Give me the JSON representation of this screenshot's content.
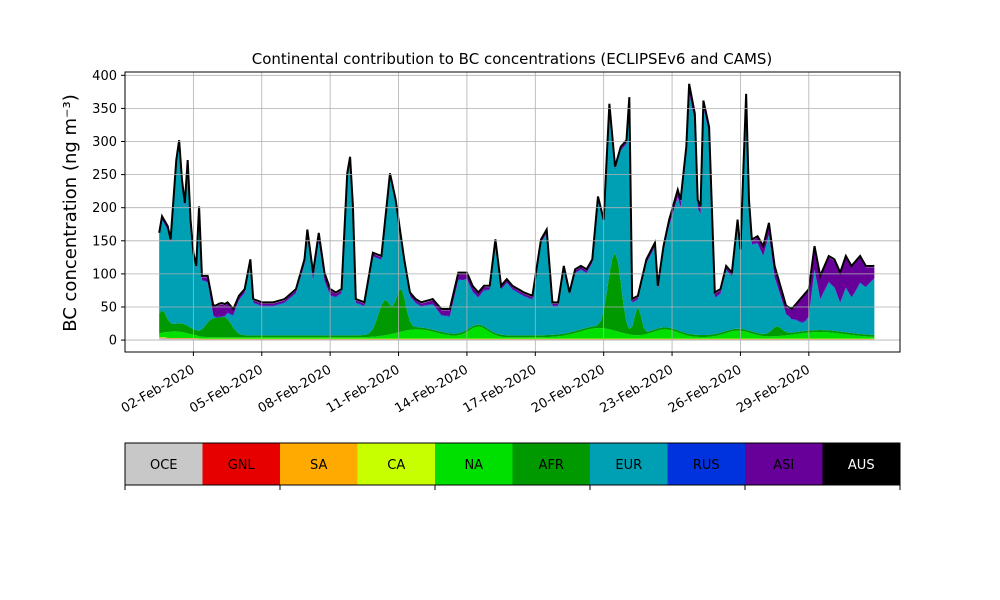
{
  "chart_data": {
    "type": "area",
    "stacked": true,
    "title": "Continental contribution to BC concentrations (ECLIPSEv6 and CAMS)",
    "ylabel": "BC concentration (ng m⁻³)",
    "xlabel": "",
    "ylim": [
      -18,
      405
    ],
    "yticks": [
      0,
      50,
      100,
      150,
      200,
      250,
      300,
      350,
      400
    ],
    "xlim": [
      "2020-01-30",
      "2020-03-04"
    ],
    "xticks": [
      "02-Feb-2020",
      "05-Feb-2020",
      "08-Feb-2020",
      "11-Feb-2020",
      "14-Feb-2020",
      "17-Feb-2020",
      "20-Feb-2020",
      "23-Feb-2020",
      "26-Feb-2020",
      "29-Feb-2020"
    ],
    "grid": true,
    "x_start": "2020-01-31 12:00",
    "x_end": "2020-03-02 21:00",
    "x_step_hours": 3,
    "series": [
      {
        "name": "OCE",
        "color": "#c8c8c8",
        "values": [
          3,
          3,
          3,
          2,
          2,
          2,
          2,
          2,
          2,
          2,
          2,
          2,
          2,
          2,
          1,
          1,
          1,
          1,
          1,
          1,
          1,
          1,
          1,
          1,
          1,
          1,
          1,
          1,
          1,
          1,
          1,
          1,
          1,
          1,
          1,
          1,
          1,
          1,
          1,
          1,
          1,
          1,
          1,
          1,
          1,
          1,
          1,
          1,
          1,
          1,
          1,
          1,
          1,
          1,
          1,
          1,
          1,
          1,
          1,
          1,
          1,
          1,
          1,
          1,
          1,
          1,
          1,
          1,
          1,
          1,
          1,
          1,
          1,
          1,
          1,
          1,
          1,
          1,
          1,
          1,
          1,
          1,
          1,
          1,
          1,
          1,
          1,
          1,
          1,
          1,
          1,
          1,
          1,
          1,
          1,
          1,
          1,
          1,
          1,
          1,
          1,
          1,
          1,
          1,
          1,
          1,
          1,
          1,
          1,
          1,
          1,
          1,
          1,
          1,
          1,
          1,
          1,
          1,
          1,
          1,
          1,
          1,
          1,
          1,
          1,
          1,
          1,
          1,
          1,
          1,
          1,
          1,
          1,
          1,
          1,
          1,
          1,
          1,
          1,
          1,
          1,
          1,
          1,
          1,
          1,
          1,
          1,
          1,
          1,
          1,
          1,
          1,
          1,
          1,
          1,
          1,
          1,
          1,
          1,
          1,
          1,
          1,
          1,
          1,
          1,
          1,
          1,
          1,
          1,
          1,
          1,
          1,
          1,
          1,
          1,
          1,
          1,
          1,
          1,
          1,
          1,
          1,
          1,
          1,
          1,
          1,
          1,
          1,
          1,
          1,
          1,
          1,
          1,
          1,
          1,
          1,
          1,
          1,
          1,
          1,
          1,
          1,
          1,
          1,
          1,
          1,
          1,
          1,
          1,
          1,
          1,
          1,
          1,
          1,
          1,
          1,
          1,
          1,
          1,
          1,
          1,
          1,
          1,
          1,
          1,
          1,
          1,
          1,
          1,
          1,
          1,
          1,
          1,
          1,
          1,
          1,
          1,
          1,
          1,
          1,
          1,
          1,
          1,
          1,
          1,
          1,
          1,
          1,
          1,
          1,
          1,
          1,
          1,
          1,
          1,
          1,
          1,
          1,
          1,
          1,
          1,
          1,
          1,
          1
        ]
      },
      {
        "name": "GNL",
        "color": "#e60000",
        "values": []
      },
      {
        "name": "SA",
        "color": "#ffaa00",
        "values": []
      },
      {
        "name": "CA",
        "color": "#c8ff00",
        "values": []
      },
      {
        "name": "NA",
        "color": "#00e000",
        "values": []
      },
      {
        "name": "AFR",
        "color": "#009900",
        "values": []
      },
      {
        "name": "EUR",
        "color": "#00a0b4",
        "values": []
      },
      {
        "name": "RUS",
        "color": "#0033dd",
        "values": []
      },
      {
        "name": "ASI",
        "color": "#660099",
        "values": []
      },
      {
        "name": "AUS",
        "color": "#000000",
        "values": []
      }
    ],
    "total_profile_keypoints": [
      [
        "2020-01-31 12:00",
        160
      ],
      [
        "2020-01-31 15:00",
        185
      ],
      [
        "2020-01-31 21:00",
        170
      ],
      [
        "2020-02-01 00:00",
        150
      ],
      [
        "2020-02-01 06:00",
        270
      ],
      [
        "2020-02-01 09:00",
        300
      ],
      [
        "2020-02-01 12:00",
        240
      ],
      [
        "2020-02-01 15:00",
        205
      ],
      [
        "2020-02-01 18:00",
        270
      ],
      [
        "2020-02-01 21:00",
        180
      ],
      [
        "2020-02-02 00:00",
        130
      ],
      [
        "2020-02-02 03:00",
        110
      ],
      [
        "2020-02-02 06:00",
        200
      ],
      [
        "2020-02-02 09:00",
        95
      ],
      [
        "2020-02-02 15:00",
        95
      ],
      [
        "2020-02-02 21:00",
        50
      ],
      [
        "2020-02-03 06:00",
        50
      ],
      [
        "2020-02-03 12:00",
        55
      ],
      [
        "2020-02-03 18:00",
        45
      ],
      [
        "2020-02-04 00:00",
        65
      ],
      [
        "2020-02-04 06:00",
        75
      ],
      [
        "2020-02-04 12:00",
        120
      ],
      [
        "2020-02-04 15:00",
        60
      ],
      [
        "2020-02-05 00:00",
        55
      ],
      [
        "2020-02-05 12:00",
        55
      ],
      [
        "2020-02-06 00:00",
        60
      ],
      [
        "2020-02-06 12:00",
        75
      ],
      [
        "2020-02-06 21:00",
        120
      ],
      [
        "2020-02-07 00:00",
        165
      ],
      [
        "2020-02-07 06:00",
        100
      ],
      [
        "2020-02-07 12:00",
        160
      ],
      [
        "2020-02-07 18:00",
        100
      ],
      [
        "2020-02-08 00:00",
        75
      ],
      [
        "2020-02-08 06:00",
        70
      ],
      [
        "2020-02-08 12:00",
        75
      ],
      [
        "2020-02-08 18:00",
        250
      ],
      [
        "2020-02-08 21:00",
        275
      ],
      [
        "2020-02-09 00:00",
        200
      ],
      [
        "2020-02-09 03:00",
        60
      ],
      [
        "2020-02-09 12:00",
        55
      ],
      [
        "2020-02-09 21:00",
        130
      ],
      [
        "2020-02-10 06:00",
        125
      ],
      [
        "2020-02-10 15:00",
        250
      ],
      [
        "2020-02-10 21:00",
        210
      ],
      [
        "2020-02-11 06:00",
        120
      ],
      [
        "2020-02-11 12:00",
        70
      ],
      [
        "2020-02-11 18:00",
        60
      ],
      [
        "2020-02-12 00:00",
        55
      ],
      [
        "2020-02-12 12:00",
        60
      ],
      [
        "2020-02-12 21:00",
        45
      ],
      [
        "2020-02-13 06:00",
        45
      ],
      [
        "2020-02-13 15:00",
        100
      ],
      [
        "2020-02-14 00:00",
        100
      ],
      [
        "2020-02-14 06:00",
        80
      ],
      [
        "2020-02-14 12:00",
        70
      ],
      [
        "2020-02-14 18:00",
        80
      ],
      [
        "2020-02-15 00:00",
        80
      ],
      [
        "2020-02-15 06:00",
        150
      ],
      [
        "2020-02-15 12:00",
        80
      ],
      [
        "2020-02-15 18:00",
        90
      ],
      [
        "2020-02-16 00:00",
        80
      ],
      [
        "2020-02-16 12:00",
        70
      ],
      [
        "2020-02-16 21:00",
        65
      ],
      [
        "2020-02-17 06:00",
        150
      ],
      [
        "2020-02-17 12:00",
        165
      ],
      [
        "2020-02-17 18:00",
        55
      ],
      [
        "2020-02-18 00:00",
        55
      ],
      [
        "2020-02-18 06:00",
        110
      ],
      [
        "2020-02-18 12:00",
        70
      ],
      [
        "2020-02-18 18:00",
        105
      ],
      [
        "2020-02-19 00:00",
        110
      ],
      [
        "2020-02-19 06:00",
        105
      ],
      [
        "2020-02-19 12:00",
        120
      ],
      [
        "2020-02-19 18:00",
        215
      ],
      [
        "2020-02-20 00:00",
        180
      ],
      [
        "2020-02-20 06:00",
        355
      ],
      [
        "2020-02-20 12:00",
        260
      ],
      [
        "2020-02-20 18:00",
        290
      ],
      [
        "2020-02-21 00:00",
        300
      ],
      [
        "2020-02-21 03:00",
        365
      ],
      [
        "2020-02-21 06:00",
        60
      ],
      [
        "2020-02-21 12:00",
        65
      ],
      [
        "2020-02-21 21:00",
        120
      ],
      [
        "2020-02-22 06:00",
        145
      ],
      [
        "2020-02-22 09:00",
        80
      ],
      [
        "2020-02-22 15:00",
        140
      ],
      [
        "2020-02-22 21:00",
        180
      ],
      [
        "2020-02-23 06:00",
        225
      ],
      [
        "2020-02-23 09:00",
        210
      ],
      [
        "2020-02-23 15:00",
        290
      ],
      [
        "2020-02-23 18:00",
        385
      ],
      [
        "2020-02-24 00:00",
        340
      ],
      [
        "2020-02-24 03:00",
        210
      ],
      [
        "2020-02-24 06:00",
        200
      ],
      [
        "2020-02-24 09:00",
        360
      ],
      [
        "2020-02-24 15:00",
        320
      ],
      [
        "2020-02-24 21:00",
        70
      ],
      [
        "2020-02-25 03:00",
        75
      ],
      [
        "2020-02-25 09:00",
        110
      ],
      [
        "2020-02-25 15:00",
        100
      ],
      [
        "2020-02-25 21:00",
        180
      ],
      [
        "2020-02-26 00:00",
        135
      ],
      [
        "2020-02-26 06:00",
        370
      ],
      [
        "2020-02-26 09:00",
        210
      ],
      [
        "2020-02-26 12:00",
        150
      ],
      [
        "2020-02-26 18:00",
        155
      ],
      [
        "2020-02-27 00:00",
        140
      ],
      [
        "2020-02-27 06:00",
        175
      ],
      [
        "2020-02-27 12:00",
        110
      ],
      [
        "2020-02-27 18:00",
        80
      ],
      [
        "2020-02-28 00:00",
        50
      ],
      [
        "2020-02-28 06:00",
        45
      ],
      [
        "2020-02-28 15:00",
        60
      ],
      [
        "2020-02-29 00:00",
        75
      ],
      [
        "2020-02-29 06:00",
        140
      ],
      [
        "2020-02-29 12:00",
        95
      ],
      [
        "2020-02-29 21:00",
        125
      ],
      [
        "2020-03-01 03:00",
        120
      ],
      [
        "2020-03-01 09:00",
        100
      ],
      [
        "2020-03-01 15:00",
        125
      ],
      [
        "2020-03-01 21:00",
        110
      ],
      [
        "2020-03-02 06:00",
        125
      ],
      [
        "2020-03-02 12:00",
        110
      ]
    ],
    "legend": {
      "placement": "below",
      "entries": [
        "OCE",
        "GNL",
        "SA",
        "CA",
        "NA",
        "AFR",
        "EUR",
        "RUS",
        "ASI",
        "AUS"
      ]
    }
  }
}
